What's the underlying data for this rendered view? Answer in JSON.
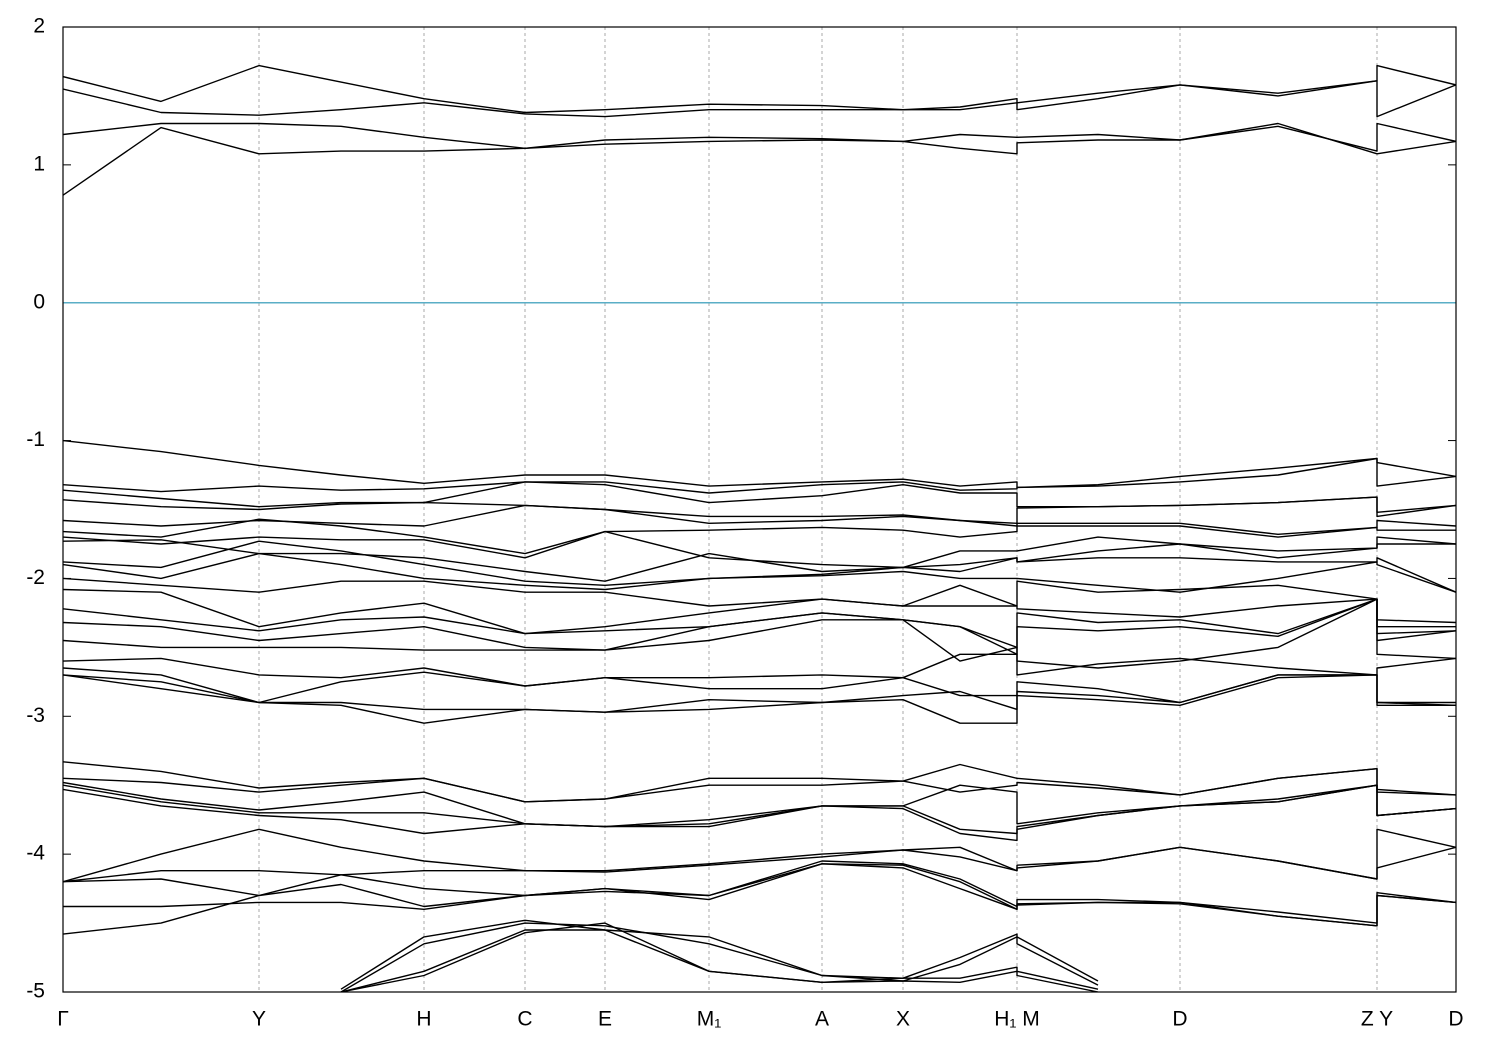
{
  "chart_data": {
    "type": "line",
    "xlim": [
      0,
      1393
    ],
    "ylim": [
      -5,
      2
    ],
    "yticks": [
      -5,
      -4,
      -3,
      -2,
      -1,
      0,
      1,
      2
    ],
    "xticks": [
      {
        "value": 0,
        "label": "Γ"
      },
      {
        "value": 196,
        "label": "Y"
      },
      {
        "value": 361,
        "label": "H"
      },
      {
        "value": 462,
        "label": "C"
      },
      {
        "value": 542,
        "label": "E"
      },
      {
        "value": 646,
        "label": "M₁"
      },
      {
        "value": 759,
        "label": "A"
      },
      {
        "value": 840,
        "label": "X"
      },
      {
        "value": 954,
        "label": "H₁ M"
      },
      {
        "value": 1117,
        "label": "D"
      },
      {
        "value": 1314,
        "label": "Z Y"
      },
      {
        "value": 1393,
        "label": "D"
      }
    ],
    "grid": true,
    "line_color": "#000000",
    "zero_line": {
      "value": 0,
      "color": "#5aaec6"
    },
    "x": [
      0,
      98,
      196,
      278,
      361,
      462,
      542,
      646,
      759,
      840,
      897,
      954,
      954,
      1035,
      1117,
      1215,
      1314,
      1314,
      1393
    ],
    "series": [
      {
        "values": [
          0.78,
          1.27,
          1.08,
          1.1,
          1.1,
          1.12,
          1.15,
          1.17,
          1.18,
          1.17,
          1.12,
          1.08,
          1.16,
          1.18,
          1.18,
          1.3,
          1.08,
          1.08,
          1.17
        ]
      },
      {
        "values": [
          1.22,
          1.3,
          1.3,
          1.28,
          1.2,
          1.12,
          1.18,
          1.2,
          1.19,
          1.17,
          1.22,
          1.2,
          1.2,
          1.22,
          1.18,
          1.28,
          1.1,
          1.3,
          1.17
        ]
      },
      {
        "values": [
          1.55,
          1.38,
          1.36,
          1.4,
          1.45,
          1.37,
          1.35,
          1.4,
          1.4,
          1.4,
          1.4,
          1.45,
          1.4,
          1.48,
          1.58,
          1.5,
          1.61,
          1.35,
          1.58
        ]
      },
      {
        "values": [
          1.64,
          1.46,
          1.72,
          1.6,
          1.48,
          1.38,
          1.4,
          1.44,
          1.43,
          1.4,
          1.42,
          1.48,
          1.45,
          1.52,
          1.58,
          1.52,
          1.61,
          1.72,
          1.58
        ]
      },
      {
        "values": [
          -1.0,
          -1.08,
          -1.18,
          -1.25,
          -1.31,
          -1.25,
          -1.25,
          -1.33,
          -1.3,
          -1.28,
          -1.33,
          -1.3,
          -1.34,
          -1.32,
          -1.26,
          -1.2,
          -1.13,
          -1.16,
          -1.26
        ]
      },
      {
        "values": [
          -1.32,
          -1.37,
          -1.33,
          -1.36,
          -1.35,
          -1.3,
          -1.3,
          -1.38,
          -1.32,
          -1.3,
          -1.36,
          -1.35,
          -1.34,
          -1.33,
          -1.3,
          -1.25,
          -1.13,
          -1.33,
          -1.26
        ]
      },
      {
        "values": [
          -1.36,
          -1.42,
          -1.48,
          -1.45,
          -1.45,
          -1.3,
          -1.32,
          -1.45,
          -1.4,
          -1.32,
          -1.38,
          -1.38,
          -1.48,
          -1.48,
          -1.47,
          -1.45,
          -1.41,
          -1.52,
          -1.47
        ]
      },
      {
        "values": [
          -1.43,
          -1.48,
          -1.5,
          -1.46,
          -1.45,
          -1.47,
          -1.5,
          -1.55,
          -1.55,
          -1.54,
          -1.58,
          -1.6,
          -1.49,
          -1.48,
          -1.47,
          -1.45,
          -1.41,
          -1.55,
          -1.47
        ]
      },
      {
        "values": [
          -1.58,
          -1.62,
          -1.58,
          -1.6,
          -1.62,
          -1.47,
          -1.5,
          -1.6,
          -1.58,
          -1.55,
          -1.58,
          -1.62,
          -1.6,
          -1.6,
          -1.6,
          -1.68,
          -1.63,
          -1.58,
          -1.62
        ]
      },
      {
        "values": [
          -1.66,
          -1.7,
          -1.57,
          -1.62,
          -1.7,
          -1.82,
          -1.66,
          -1.65,
          -1.63,
          -1.65,
          -1.7,
          -1.66,
          -1.62,
          -1.62,
          -1.62,
          -1.7,
          -1.63,
          -1.65,
          -1.65
        ]
      },
      {
        "values": [
          -1.7,
          -1.75,
          -1.7,
          -1.72,
          -1.72,
          -1.85,
          -1.66,
          -1.85,
          -1.9,
          -1.92,
          -1.8,
          -1.8,
          -1.8,
          -1.7,
          -1.75,
          -1.8,
          -1.78,
          -1.7,
          -1.75
        ]
      },
      {
        "values": [
          -1.73,
          -1.72,
          -1.82,
          -1.82,
          -1.85,
          -1.95,
          -2.02,
          -1.82,
          -1.95,
          -1.92,
          -1.9,
          -1.85,
          -1.88,
          -1.8,
          -1.75,
          -1.85,
          -1.78,
          -1.75,
          -1.75
        ]
      },
      {
        "values": [
          -1.88,
          -1.92,
          -1.73,
          -1.8,
          -1.9,
          -2.02,
          -2.05,
          -2.0,
          -1.97,
          -1.92,
          -1.95,
          -1.85,
          -1.88,
          -1.85,
          -1.85,
          -1.88,
          -1.88,
          -1.85,
          -2.1
        ]
      },
      {
        "values": [
          -1.9,
          -2.0,
          -1.82,
          -1.9,
          -2.0,
          -2.05,
          -2.08,
          -2.0,
          -1.98,
          -1.95,
          -2.0,
          -2.0,
          -2.0,
          -2.05,
          -2.1,
          -2.0,
          -1.88,
          -1.9,
          -2.1
        ]
      },
      {
        "values": [
          -2.0,
          -2.05,
          -2.1,
          -2.02,
          -2.02,
          -2.1,
          -2.1,
          -2.2,
          -2.15,
          -2.2,
          -2.05,
          -2.2,
          -2.02,
          -2.1,
          -2.08,
          -2.05,
          -2.15,
          -2.3,
          -2.32
        ]
      },
      {
        "values": [
          -2.08,
          -2.1,
          -2.35,
          -2.25,
          -2.18,
          -2.4,
          -2.35,
          -2.25,
          -2.15,
          -2.2,
          -2.2,
          -2.2,
          -2.22,
          -2.25,
          -2.28,
          -2.2,
          -2.15,
          -2.35,
          -2.35
        ]
      },
      {
        "values": [
          -2.22,
          -2.3,
          -2.38,
          -2.3,
          -2.28,
          -2.4,
          -2.38,
          -2.35,
          -2.25,
          -2.3,
          -2.35,
          -2.5,
          -2.25,
          -2.32,
          -2.3,
          -2.4,
          -2.15,
          -2.4,
          -2.38
        ]
      },
      {
        "values": [
          -2.32,
          -2.35,
          -2.45,
          -2.4,
          -2.35,
          -2.5,
          -2.52,
          -2.35,
          -2.25,
          -2.3,
          -2.35,
          -2.55,
          -2.35,
          -2.38,
          -2.35,
          -2.42,
          -2.15,
          -2.45,
          -2.38
        ]
      },
      {
        "values": [
          -2.45,
          -2.5,
          -2.5,
          -2.5,
          -2.52,
          -2.52,
          -2.52,
          -2.45,
          -2.3,
          -2.3,
          -2.6,
          -2.5,
          -2.6,
          -2.65,
          -2.6,
          -2.5,
          -2.15,
          -2.55,
          -2.58
        ]
      },
      {
        "values": [
          -2.6,
          -2.58,
          -2.7,
          -2.72,
          -2.65,
          -2.78,
          -2.72,
          -2.72,
          -2.7,
          -2.72,
          -2.55,
          -2.55,
          -2.7,
          -2.62,
          -2.58,
          -2.65,
          -2.7,
          -2.65,
          -2.58
        ]
      },
      {
        "values": [
          -2.65,
          -2.7,
          -2.9,
          -2.75,
          -2.68,
          -2.78,
          -2.72,
          -2.8,
          -2.8,
          -2.72,
          -2.85,
          -2.85,
          -2.75,
          -2.8,
          -2.9,
          -2.7,
          -2.7,
          -2.9,
          -2.9
        ]
      },
      {
        "values": [
          -2.7,
          -2.75,
          -2.9,
          -2.9,
          -2.95,
          -2.95,
          -2.97,
          -2.88,
          -2.9,
          -2.85,
          -2.82,
          -2.95,
          -2.82,
          -2.85,
          -2.9,
          -2.7,
          -2.7,
          -2.9,
          -2.92
        ]
      },
      {
        "values": [
          -2.7,
          -2.8,
          -2.9,
          -2.92,
          -3.05,
          -2.95,
          -2.97,
          -2.95,
          -2.9,
          -2.88,
          -3.05,
          -3.05,
          -2.85,
          -2.88,
          -2.92,
          -2.72,
          -2.7,
          -2.92,
          -2.92
        ]
      },
      {
        "values": [
          -3.33,
          -3.4,
          -3.52,
          -3.48,
          -3.45,
          -3.62,
          -3.6,
          -3.45,
          -3.45,
          -3.47,
          -3.35,
          -3.45,
          -3.45,
          -3.5,
          -3.57,
          -3.45,
          -3.38,
          -3.53,
          -3.57
        ]
      },
      {
        "values": [
          -3.45,
          -3.48,
          -3.55,
          -3.5,
          -3.45,
          -3.62,
          -3.6,
          -3.5,
          -3.5,
          -3.47,
          -3.55,
          -3.5,
          -3.48,
          -3.52,
          -3.57,
          -3.45,
          -3.38,
          -3.55,
          -3.57
        ]
      },
      {
        "values": [
          -3.48,
          -3.6,
          -3.68,
          -3.62,
          -3.55,
          -3.78,
          -3.8,
          -3.75,
          -3.65,
          -3.65,
          -3.5,
          -3.55,
          -3.78,
          -3.7,
          -3.65,
          -3.62,
          -3.5,
          -3.72,
          -3.67
        ]
      },
      {
        "values": [
          -3.5,
          -3.62,
          -3.7,
          -3.7,
          -3.7,
          -3.78,
          -3.8,
          -3.78,
          -3.65,
          -3.65,
          -3.82,
          -3.85,
          -3.8,
          -3.72,
          -3.65,
          -3.62,
          -3.5,
          -3.72,
          -3.67
        ]
      },
      {
        "values": [
          -3.53,
          -3.65,
          -3.72,
          -3.75,
          -3.85,
          -3.78,
          -3.8,
          -3.8,
          -3.65,
          -3.67,
          -3.85,
          -3.9,
          -3.82,
          -3.72,
          -3.65,
          -3.6,
          -3.5,
          -3.72,
          -3.67
        ]
      },
      {
        "values": [
          -4.2,
          -4.0,
          -3.82,
          -3.95,
          -4.05,
          -4.12,
          -4.12,
          -4.07,
          -4.0,
          -3.97,
          -3.95,
          -4.12,
          -4.08,
          -4.05,
          -3.95,
          -4.05,
          -4.18,
          -3.82,
          -3.95
        ]
      },
      {
        "values": [
          -4.2,
          -4.12,
          -4.12,
          -4.15,
          -4.12,
          -4.12,
          -4.13,
          -4.08,
          -4.02,
          -3.97,
          -4.02,
          -4.12,
          -4.1,
          -4.05,
          -3.95,
          -4.05,
          -4.18,
          -4.1,
          -3.95
        ]
      },
      {
        "values": [
          -4.2,
          -4.18,
          -4.3,
          -4.15,
          -4.25,
          -4.3,
          -4.25,
          -4.3,
          -4.05,
          -4.07,
          -4.18,
          -4.38,
          -4.33,
          -4.33,
          -4.35,
          -4.42,
          -4.5,
          -4.28,
          -4.35
        ]
      },
      {
        "values": [
          -4.38,
          -4.38,
          -4.35,
          -4.35,
          -4.4,
          -4.3,
          -4.25,
          -4.33,
          -4.07,
          -4.08,
          -4.2,
          -4.4,
          -4.36,
          -4.35,
          -4.35,
          -4.45,
          -4.52,
          -4.3,
          -4.35
        ]
      },
      {
        "values": [
          -4.58,
          -4.5,
          -4.3,
          -4.22,
          -4.38,
          -4.3,
          -4.27,
          -4.3,
          -4.07,
          -4.1,
          -4.25,
          -4.4,
          -4.37,
          -4.35,
          -4.36,
          -4.45,
          -4.52,
          -4.3,
          -4.35
        ]
      },
      {
        "values": [
          null,
          null,
          null,
          -4.98,
          -4.6,
          -4.48,
          -4.55,
          -4.6,
          -4.88,
          -4.9,
          -4.75,
          -4.58,
          -4.6,
          -4.92,
          null,
          null,
          null,
          null,
          null
        ]
      },
      {
        "values": [
          null,
          null,
          null,
          -5.0,
          -4.65,
          -4.5,
          -4.52,
          -4.65,
          -4.88,
          -4.92,
          -4.8,
          -4.6,
          -4.65,
          -4.95,
          null,
          null,
          null,
          null,
          null
        ]
      },
      {
        "values": [
          null,
          null,
          null,
          -5.0,
          -4.85,
          -4.55,
          -4.55,
          -4.85,
          -4.93,
          -4.9,
          -4.9,
          -4.82,
          -4.85,
          -4.98,
          null,
          null,
          null,
          null,
          null
        ]
      },
      {
        "values": [
          null,
          null,
          null,
          -5.0,
          -4.88,
          -4.57,
          -4.5,
          -4.85,
          -4.93,
          -4.92,
          -4.93,
          -4.85,
          -4.88,
          -5.0,
          null,
          null,
          null,
          null,
          null
        ]
      }
    ]
  }
}
